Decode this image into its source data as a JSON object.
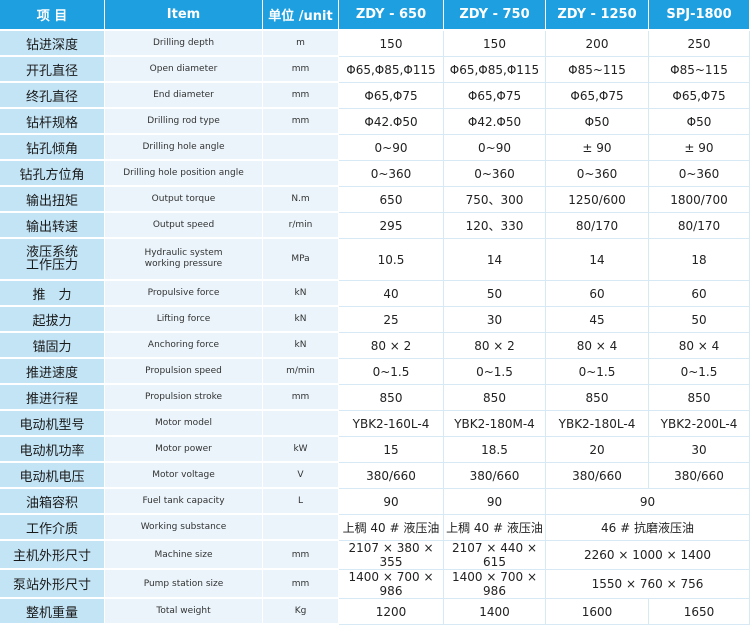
{
  "header": {
    "col_zh": "项 目",
    "col_item": "Item",
    "col_unit": "单位 /unit",
    "col_m1": "ZDY - 650",
    "col_m2": "ZDY - 750",
    "col_m3": "ZDY - 1250",
    "col_m4": "SPJ-1800"
  },
  "rows": [
    {
      "zh": "钻进深度",
      "en": "Drilling depth",
      "unit": "m",
      "v": [
        "150",
        "150",
        "200",
        "250"
      ]
    },
    {
      "zh": "开孔直径",
      "en": "Open diameter",
      "unit": "mm",
      "v": [
        "Φ65,Φ85,Φ115",
        "Φ65,Φ85,Φ115",
        "Φ85~115",
        "Φ85~115"
      ]
    },
    {
      "zh": "终孔直径",
      "en": "End diameter",
      "unit": "mm",
      "v": [
        "Φ65,Φ75",
        "Φ65,Φ75",
        "Φ65,Φ75",
        "Φ65,Φ75"
      ]
    },
    {
      "zh": "钻杆规格",
      "en": "Drilling rod type",
      "unit": "mm",
      "v": [
        "Φ42.Φ50",
        "Φ42.Φ50",
        "Φ50",
        "Φ50"
      ]
    },
    {
      "zh": "钻孔倾角",
      "en": "Drilling hole angle",
      "unit": "",
      "v": [
        "0~90",
        "0~90",
        "± 90",
        "± 90"
      ]
    },
    {
      "zh": "钻孔方位角",
      "en": "Drilling hole position angle",
      "unit": "",
      "v": [
        "0~360",
        "0~360",
        "0~360",
        "0~360"
      ]
    },
    {
      "zh": "输出扭矩",
      "en": "Output torque",
      "unit": "N.m",
      "v": [
        "650",
        "750、300",
        "1250/600",
        "1800/700"
      ]
    },
    {
      "zh": "输出转速",
      "en": "Output speed",
      "unit": "r/min",
      "v": [
        "295",
        "120、330",
        "80/170",
        "80/170"
      ]
    },
    {
      "zh": "液压系统",
      "zh2": "工作压力",
      "en": "Hydraulic system",
      "en2": "working pressure",
      "unit": "MPa",
      "v": [
        "10.5",
        "14",
        "14",
        "18"
      ]
    },
    {
      "zh": "推　力",
      "en": "Propulsive force",
      "unit": "kN",
      "v": [
        "40",
        "50",
        "60",
        "60"
      ]
    },
    {
      "zh": "起拔力",
      "en": "Lifting force",
      "unit": "kN",
      "v": [
        "25",
        "30",
        "45",
        "50"
      ]
    },
    {
      "zh": "锚固力",
      "en": "Anchoring force",
      "unit": "kN",
      "v": [
        "80 × 2",
        "80 × 2",
        "80 × 4",
        "80 × 4"
      ]
    },
    {
      "zh": "推进速度",
      "en": "Propulsion speed",
      "unit": "m/min",
      "v": [
        "0~1.5",
        "0~1.5",
        "0~1.5",
        "0~1.5"
      ]
    },
    {
      "zh": "推进行程",
      "en": "Propulsion stroke",
      "unit": "mm",
      "v": [
        "850",
        "850",
        "850",
        "850"
      ]
    },
    {
      "zh": "电动机型号",
      "en": "Motor model",
      "unit": "",
      "v": [
        "YBK2-160L-4",
        "YBK2-180M-4",
        "YBK2-180L-4",
        "YBK2-200L-4"
      ]
    },
    {
      "zh": "电动机功率",
      "en": "Motor power",
      "unit": "kW",
      "v": [
        "15",
        "18.5",
        "20",
        "30"
      ]
    },
    {
      "zh": "电动机电压",
      "en": "Motor voltage",
      "unit": "V",
      "v": [
        "380/660",
        "380/660",
        "380/660",
        "380/660"
      ]
    },
    {
      "zh": "油箱容积",
      "en": "Fuel tank capacity",
      "unit": "L",
      "v": [
        "90",
        "90"
      ],
      "merged": "90"
    },
    {
      "zh": "工作介质",
      "en": "Working substance",
      "unit": "",
      "v": [
        "上稠 40 # 液压油",
        "上稠 40 # 液压油"
      ],
      "merged": "46 # 抗磨液压油"
    },
    {
      "zh": "主机外形尺寸",
      "en": "Machine size",
      "unit": "mm",
      "v": [
        "2107 × 380 × 355",
        "2107 × 440 × 615"
      ],
      "merged": "2260 × 1000 × 1400"
    },
    {
      "zh": "泵站外形尺寸",
      "en": "Pump station size",
      "unit": "mm",
      "v": [
        "1400 × 700 × 986",
        "1400 × 700 × 986"
      ],
      "merged": "1550 × 760 × 756"
    },
    {
      "zh": "整机重量",
      "en": "Total weight",
      "unit": "Kg",
      "v": [
        "1200",
        "1400",
        "1600",
        "1650"
      ]
    }
  ]
}
